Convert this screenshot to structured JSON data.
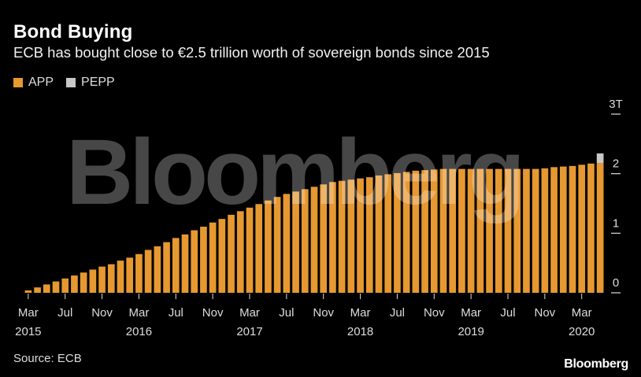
{
  "title": "Bond Buying",
  "subtitle": "ECB has bought close to €2.5 trillion worth of sovereign bonds since 2015",
  "source": "Source: ECB",
  "brand": "Bloomberg",
  "watermark": "Bloomberg",
  "colors": {
    "app": "#e69831",
    "pepp": "#c8c8c8",
    "background": "#000000",
    "axis": "#dddddd"
  },
  "chart_data": {
    "type": "bar",
    "stacked": true,
    "legend": [
      "APP",
      "PEPP"
    ],
    "legend_position": "top-left",
    "grid": false,
    "y_axis_side": "right",
    "ylim": [
      0,
      3
    ],
    "yticks": [
      {
        "value": 0,
        "label": "0"
      },
      {
        "value": 1,
        "label": "1"
      },
      {
        "value": 2,
        "label": "2"
      },
      {
        "value": 3,
        "label": "3T"
      }
    ],
    "xticks": [
      {
        "index": 0,
        "label": "Mar",
        "year": "2015"
      },
      {
        "index": 4,
        "label": "Jul",
        "year": ""
      },
      {
        "index": 8,
        "label": "Nov",
        "year": ""
      },
      {
        "index": 12,
        "label": "Mar",
        "year": "2016"
      },
      {
        "index": 16,
        "label": "Jul",
        "year": ""
      },
      {
        "index": 20,
        "label": "Nov",
        "year": ""
      },
      {
        "index": 24,
        "label": "Mar",
        "year": "2017"
      },
      {
        "index": 28,
        "label": "Jul",
        "year": ""
      },
      {
        "index": 32,
        "label": "Nov",
        "year": ""
      },
      {
        "index": 36,
        "label": "Mar",
        "year": "2018"
      },
      {
        "index": 40,
        "label": "Jul",
        "year": ""
      },
      {
        "index": 44,
        "label": "Nov",
        "year": ""
      },
      {
        "index": 48,
        "label": "Mar",
        "year": "2019"
      },
      {
        "index": 52,
        "label": "Jul",
        "year": ""
      },
      {
        "index": 56,
        "label": "Nov",
        "year": ""
      },
      {
        "index": 60,
        "label": "Mar",
        "year": "2020"
      }
    ],
    "categories": [
      "2015-03",
      "2015-04",
      "2015-05",
      "2015-06",
      "2015-07",
      "2015-08",
      "2015-09",
      "2015-10",
      "2015-11",
      "2015-12",
      "2016-01",
      "2016-02",
      "2016-03",
      "2016-04",
      "2016-05",
      "2016-06",
      "2016-07",
      "2016-08",
      "2016-09",
      "2016-10",
      "2016-11",
      "2016-12",
      "2017-01",
      "2017-02",
      "2017-03",
      "2017-04",
      "2017-05",
      "2017-06",
      "2017-07",
      "2017-08",
      "2017-09",
      "2017-10",
      "2017-11",
      "2017-12",
      "2018-01",
      "2018-02",
      "2018-03",
      "2018-04",
      "2018-05",
      "2018-06",
      "2018-07",
      "2018-08",
      "2018-09",
      "2018-10",
      "2018-11",
      "2018-12",
      "2019-01",
      "2019-02",
      "2019-03",
      "2019-04",
      "2019-05",
      "2019-06",
      "2019-07",
      "2019-08",
      "2019-09",
      "2019-10",
      "2019-11",
      "2019-12",
      "2020-01",
      "2020-02",
      "2020-03",
      "2020-04",
      "2020-05"
    ],
    "series": [
      {
        "name": "APP",
        "values": [
          0.04,
          0.09,
          0.14,
          0.19,
          0.24,
          0.29,
          0.34,
          0.39,
          0.44,
          0.48,
          0.54,
          0.59,
          0.65,
          0.72,
          0.78,
          0.85,
          0.92,
          0.98,
          1.05,
          1.11,
          1.18,
          1.24,
          1.31,
          1.37,
          1.43,
          1.49,
          1.55,
          1.61,
          1.66,
          1.7,
          1.74,
          1.78,
          1.82,
          1.86,
          1.88,
          1.9,
          1.92,
          1.94,
          1.97,
          1.99,
          2.01,
          2.03,
          2.05,
          2.06,
          2.07,
          2.08,
          2.08,
          2.08,
          2.08,
          2.08,
          2.08,
          2.08,
          2.08,
          2.08,
          2.08,
          2.08,
          2.09,
          2.11,
          2.12,
          2.13,
          2.15,
          2.17,
          2.18
        ]
      },
      {
        "name": "PEPP",
        "values": [
          0,
          0,
          0,
          0,
          0,
          0,
          0,
          0,
          0,
          0,
          0,
          0,
          0,
          0,
          0,
          0,
          0,
          0,
          0,
          0,
          0,
          0,
          0,
          0,
          0,
          0,
          0,
          0,
          0,
          0,
          0,
          0,
          0,
          0,
          0,
          0,
          0,
          0,
          0,
          0,
          0,
          0,
          0,
          0,
          0,
          0,
          0,
          0,
          0,
          0,
          0,
          0,
          0,
          0,
          0,
          0,
          0,
          0,
          0,
          0,
          0,
          0,
          0.16
        ]
      }
    ]
  }
}
